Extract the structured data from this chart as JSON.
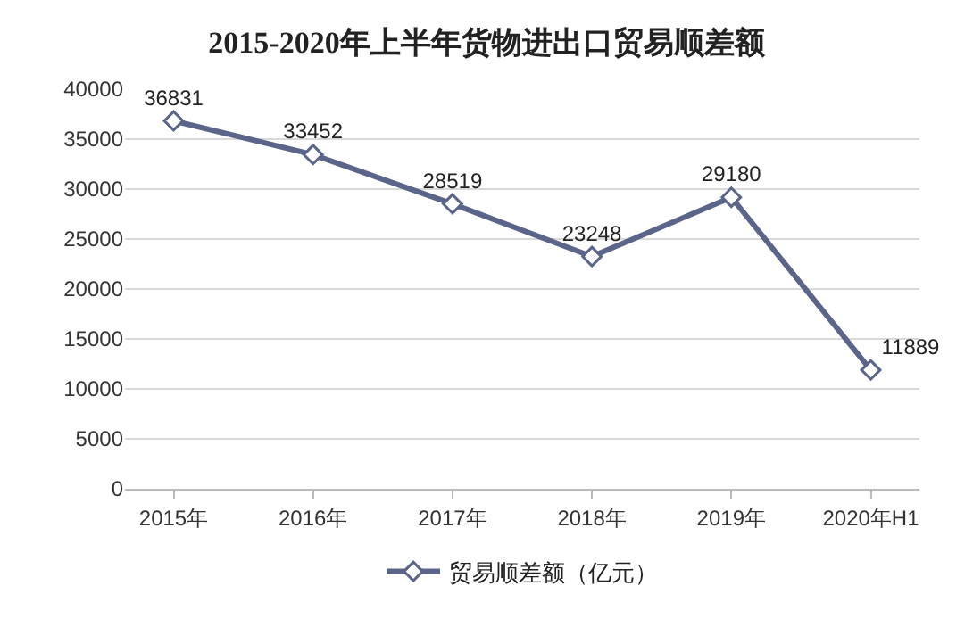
{
  "chart_data": {
    "type": "line",
    "title": "2015-2020年上半年货物进出口贸易顺差额",
    "categories": [
      "2015年",
      "2016年",
      "2017年",
      "2018年",
      "2019年",
      "2020年H1"
    ],
    "series": [
      {
        "name": "贸易顺差额（亿元）",
        "color": "#5b6489",
        "values": [
          36831,
          33452,
          28519,
          23248,
          29180,
          11889
        ]
      }
    ],
    "ylim": [
      0,
      40000
    ],
    "yticks": [
      0,
      5000,
      10000,
      15000,
      20000,
      25000,
      30000,
      35000,
      40000
    ],
    "grid": "y",
    "legend": "bottom",
    "marker": "diamond",
    "line_style": "solid",
    "data_labels": true
  }
}
